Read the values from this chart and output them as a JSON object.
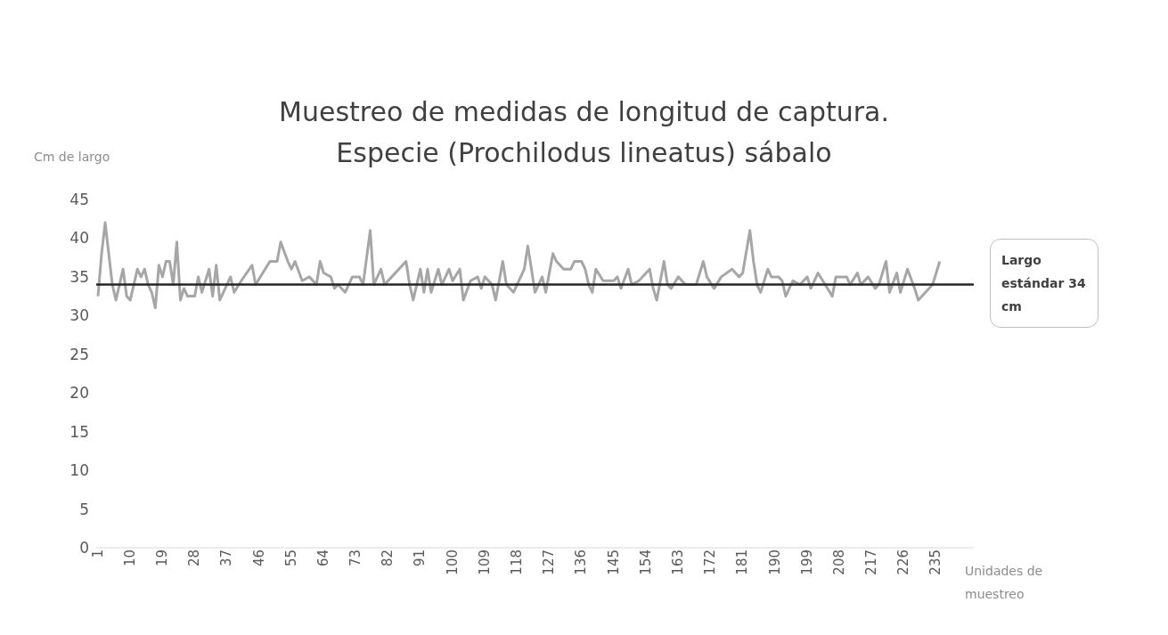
{
  "chart_data": {
    "type": "line",
    "title": "Muestreo de medidas de longitud de captura.",
    "subtitle": "Especie  (Prochilodus lineatus) sábalo",
    "ylabel": "Cm de largo",
    "xlabel": "Unidades de muestreo",
    "x": [
      1,
      2,
      3,
      4,
      5,
      6,
      7,
      8,
      9,
      10,
      11,
      12,
      13,
      14,
      15,
      16,
      17,
      18,
      19,
      20,
      21,
      22,
      23,
      24,
      25,
      26,
      28,
      29,
      30,
      32,
      33,
      34,
      35,
      36,
      38,
      39,
      41,
      44,
      45,
      47,
      49,
      51,
      52,
      54,
      55,
      56,
      58,
      60,
      62,
      63,
      64,
      66,
      67,
      68,
      70,
      72,
      74,
      75,
      77,
      78,
      80,
      81,
      83,
      87,
      88,
      89,
      91,
      92,
      93,
      94,
      96,
      97,
      99,
      100,
      102,
      103,
      105,
      107,
      108,
      109,
      111,
      112,
      114,
      115,
      117,
      118,
      120,
      121,
      123,
      125,
      126,
      128,
      129,
      131,
      133,
      134,
      136,
      137,
      138,
      139,
      140,
      142,
      145,
      146,
      147,
      149,
      150,
      152,
      155,
      156,
      157,
      159,
      160,
      161,
      163,
      165,
      168,
      170,
      171,
      173,
      175,
      178,
      180,
      181,
      183,
      184,
      185,
      186,
      188,
      189,
      191,
      192,
      193,
      195,
      197,
      199,
      200,
      202,
      204,
      206,
      207,
      210,
      211,
      213,
      214,
      216,
      218,
      219,
      221,
      222,
      224,
      225,
      227,
      229,
      230,
      232,
      234,
      236
    ],
    "values": [
      32.5,
      38,
      42,
      38,
      34,
      32,
      34,
      36,
      32.5,
      32,
      34,
      36,
      35,
      36,
      34,
      33,
      31,
      36.5,
      35,
      37,
      37,
      34,
      39.5,
      32,
      33.5,
      32.5,
      32.5,
      35,
      33,
      36,
      32.5,
      36.5,
      32,
      33,
      35,
      33,
      34.5,
      36.5,
      34,
      35.5,
      37,
      37,
      39.5,
      37,
      36,
      37,
      34.5,
      35,
      34,
      37,
      35.5,
      35,
      33.5,
      34,
      33,
      35,
      35,
      34,
      41,
      34,
      36,
      34,
      35,
      37,
      34,
      32,
      36,
      33,
      36,
      33,
      36,
      34,
      36,
      34.5,
      36,
      32,
      34.5,
      35,
      33.5,
      35,
      34,
      32,
      37,
      34,
      33,
      34,
      36,
      39,
      33,
      35,
      33,
      38,
      37,
      36,
      36,
      37,
      37,
      36,
      34,
      33,
      36,
      34.5,
      34.5,
      35,
      33.5,
      36,
      34,
      34.5,
      36,
      33.5,
      32,
      37,
      34,
      33.5,
      35,
      34,
      34,
      37,
      35,
      33.5,
      35,
      36,
      35,
      35.5,
      41,
      37,
      34,
      33,
      36,
      35,
      35,
      34.5,
      32.5,
      34.5,
      34,
      35,
      33.5,
      35.5,
      34,
      32.5,
      35,
      35,
      34,
      35.5,
      34,
      35,
      33.5,
      34,
      37,
      33,
      35.5,
      33,
      36,
      33.5,
      32,
      33,
      34,
      37
    ],
    "color": "#a6a6a6",
    "xlim": [
      0.5,
      245.5
    ],
    "xticks": [
      1,
      10,
      19,
      28,
      37,
      46,
      55,
      64,
      73,
      82,
      91,
      100,
      109,
      118,
      127,
      136,
      145,
      154,
      163,
      172,
      181,
      190,
      199,
      208,
      217,
      226,
      235
    ],
    "ylim": [
      0,
      45
    ],
    "yticks": [
      0,
      5,
      10,
      15,
      20,
      25,
      30,
      35,
      40,
      45
    ],
    "ref_lines": [
      {
        "axis": "y",
        "value": 34,
        "label": "Largo estándar 34 cm",
        "color": "#262626"
      }
    ]
  }
}
